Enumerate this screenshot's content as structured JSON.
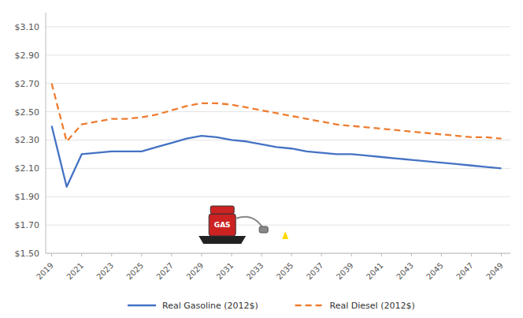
{
  "chart_data": {
    "type": "line",
    "x": [
      2019,
      2020,
      2021,
      2022,
      2023,
      2024,
      2025,
      2026,
      2027,
      2028,
      2029,
      2030,
      2031,
      2032,
      2033,
      2034,
      2035,
      2036,
      2037,
      2038,
      2039,
      2040,
      2041,
      2042,
      2043,
      2044,
      2045,
      2046,
      2047,
      2048,
      2049
    ],
    "series": [
      {
        "name": "Real Gasoline (2012$)",
        "color": "#4472C4",
        "line_style": "solid",
        "values": [
          2.4,
          1.97,
          2.2,
          2.21,
          2.22,
          2.22,
          2.22,
          2.25,
          2.28,
          2.31,
          2.33,
          2.32,
          2.3,
          2.29,
          2.27,
          2.25,
          2.24,
          2.22,
          2.21,
          2.2,
          2.2,
          2.19,
          2.18,
          2.17,
          2.16,
          2.15,
          2.14,
          2.13,
          2.12,
          2.11,
          2.1
        ]
      },
      {
        "name": "Real Diesel (2012$)",
        "color": "#ED7D31",
        "line_style": "dashed",
        "values": [
          2.7,
          2.29,
          2.41,
          2.43,
          2.45,
          2.45,
          2.46,
          2.48,
          2.51,
          2.54,
          2.56,
          2.56,
          2.55,
          2.53,
          2.51,
          2.49,
          2.47,
          2.45,
          2.43,
          2.41,
          2.4,
          2.39,
          2.38,
          2.37,
          2.36,
          2.35,
          2.34,
          2.33,
          2.32,
          2.32,
          2.31
        ]
      }
    ],
    "xlim": [
      2018.6,
      2049.6
    ],
    "xticks": [
      2019,
      2021,
      2023,
      2025,
      2027,
      2029,
      2031,
      2033,
      2035,
      2037,
      2039,
      2041,
      2043,
      2045,
      2047,
      2049
    ],
    "ylim": [
      1.5,
      3.2
    ],
    "yticks": [
      {
        "value": 1.5,
        "label": "$1.50"
      },
      {
        "value": 1.7,
        "label": "$1.70"
      },
      {
        "value": 1.9,
        "label": "$1.90"
      },
      {
        "value": 2.1,
        "label": "$2.10"
      },
      {
        "value": 2.3,
        "label": "$2.30"
      },
      {
        "value": 2.5,
        "label": "$2.50"
      },
      {
        "value": 2.7,
        "label": "$2.70"
      },
      {
        "value": 2.9,
        "label": "$2.90"
      },
      {
        "value": 3.1,
        "label": "$3.10"
      }
    ],
    "grid": true,
    "legend": "bottom",
    "annotations": [
      {
        "text": "GAS"
      }
    ]
  }
}
